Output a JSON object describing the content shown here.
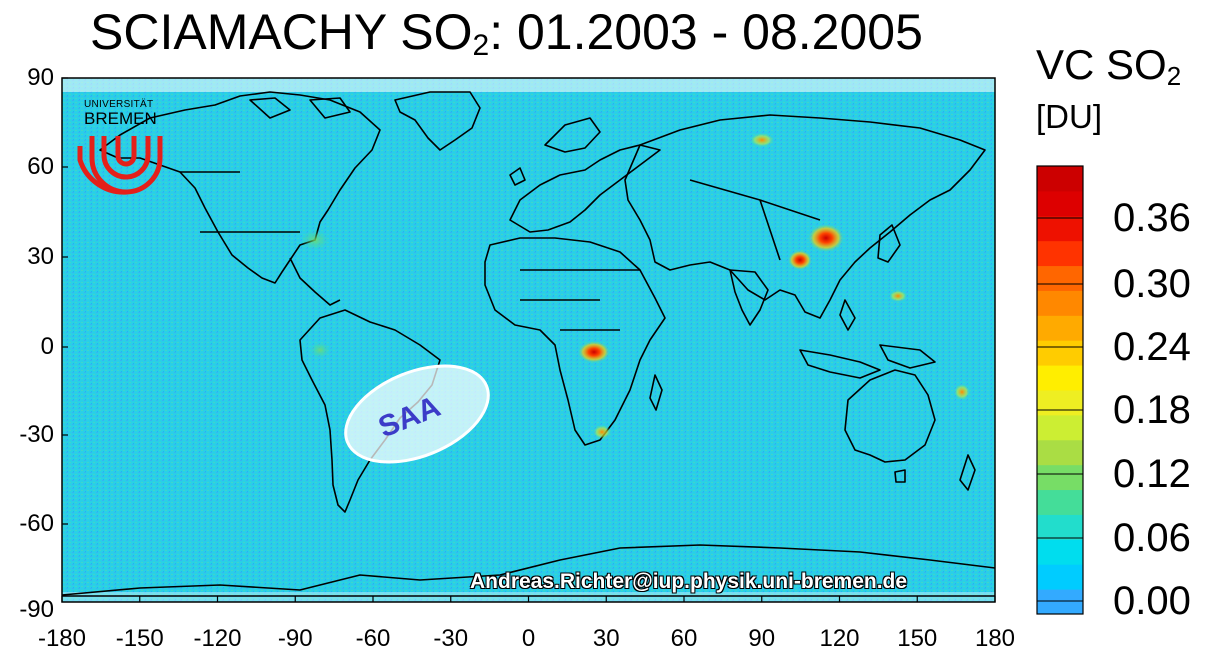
{
  "title": {
    "prefix": "SCIAMACHY SO",
    "sub": "2",
    "suffix": ": 01.2003 - 08.2005"
  },
  "colorbar": {
    "title_prefix": "VC SO",
    "title_sub": "2",
    "unit": "[DU]",
    "ticks": [
      "0.36",
      "0.30",
      "0.24",
      "0.18",
      "0.12",
      "0.06",
      "0.00"
    ],
    "colors": [
      "#33aaff",
      "#00ccff",
      "#00ddee",
      "#22ddcc",
      "#44dd99",
      "#77dd66",
      "#aadd44",
      "#ccee33",
      "#eeee22",
      "#ffee00",
      "#ffcc00",
      "#ffaa00",
      "#ff8800",
      "#ff6600",
      "#ff3300",
      "#ee1100",
      "#dd0000",
      "#cc0000"
    ]
  },
  "y_axis": {
    "ticks": [
      "90",
      "60",
      "30",
      "0",
      "-30",
      "-60",
      "-90"
    ]
  },
  "x_axis": {
    "ticks": [
      "-180",
      "-150",
      "-120",
      "-90",
      "-60",
      "-30",
      "0",
      "30",
      "60",
      "90",
      "120",
      "150",
      "180"
    ]
  },
  "annotation": {
    "label": "SAA"
  },
  "logo": {
    "line1": "UNIVERSITÄT",
    "line2": "BREMEN"
  },
  "credit": "Andreas.Richter@iup.physik.uni-bremen.de",
  "map_colors": {
    "background": "#2ad0e8",
    "land_line": "#000000",
    "hotspot": "#dd1100"
  }
}
